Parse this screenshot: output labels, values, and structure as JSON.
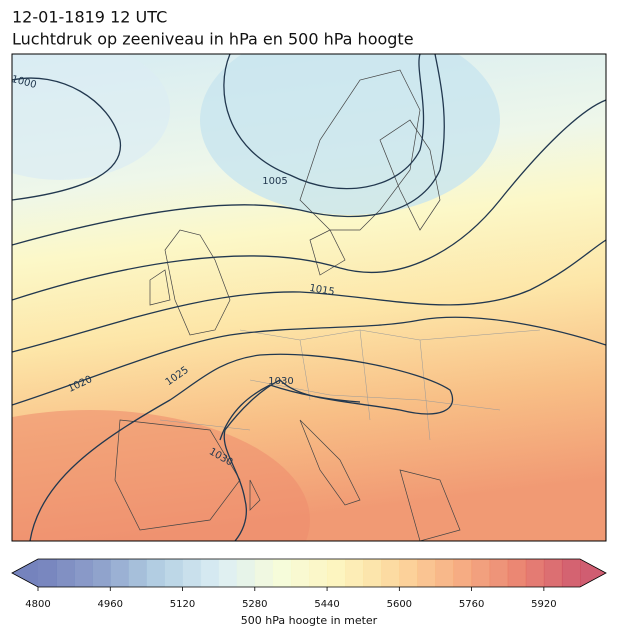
{
  "header": {
    "title": "12-01-1819 12 UTC",
    "subtitle": "Luchtdruk op zeeniveau in hPa en 500 hPa hoogte"
  },
  "isobar_labels": [
    1000,
    1005,
    1015,
    1020,
    1025,
    1030,
    1030
  ],
  "colorbar": {
    "range": [
      4800,
      6000
    ],
    "ticks": [
      4800,
      4960,
      5120,
      5280,
      5440,
      5600,
      5760,
      5920
    ],
    "label": "500 hPa hoogte in meter"
  }
}
